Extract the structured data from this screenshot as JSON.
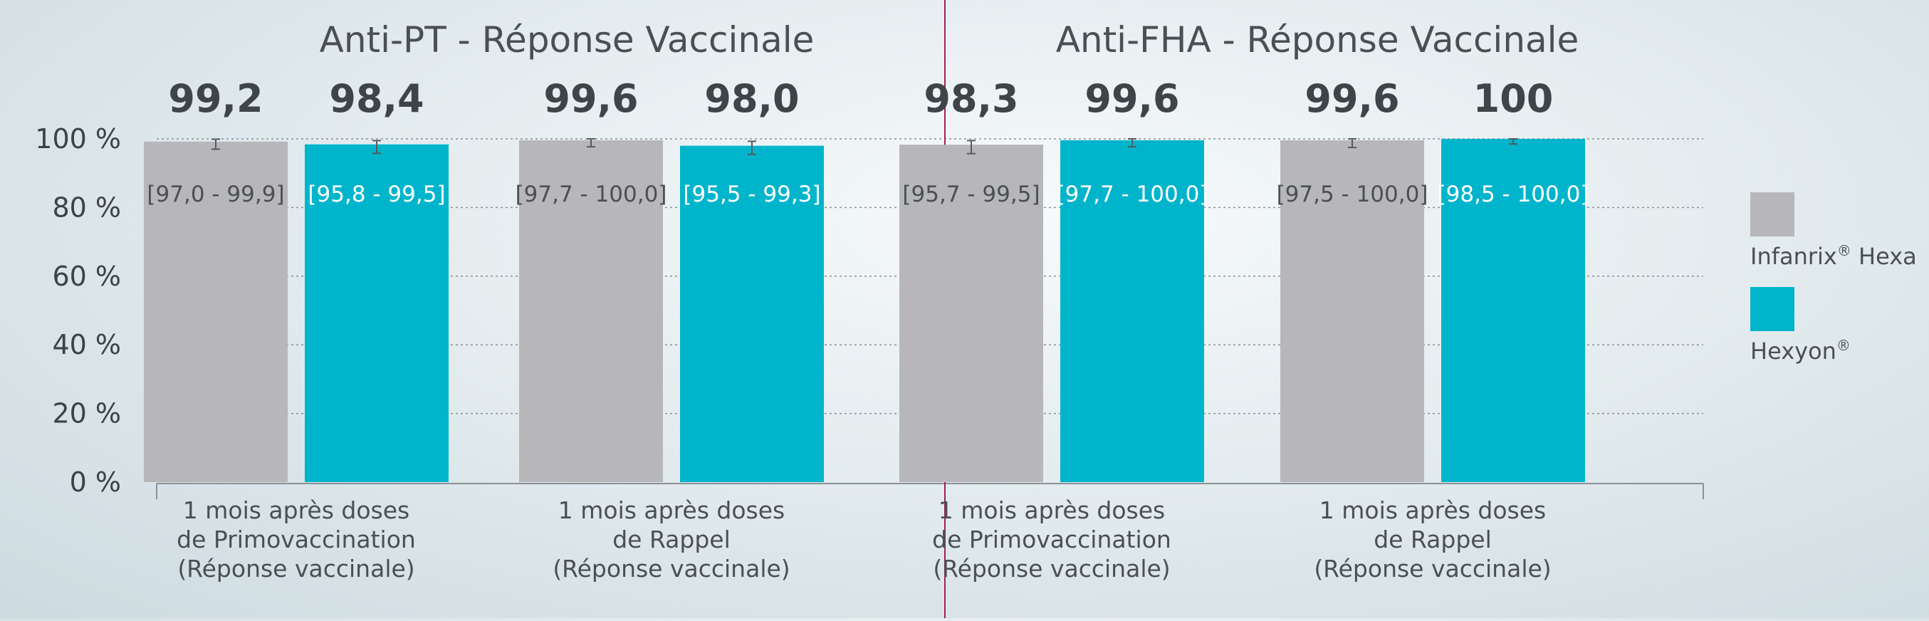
{
  "chart_data": [
    {
      "type": "bar",
      "title": "Anti-PT - Réponse Vaccinale",
      "categories": [
        [
          "1 mois après doses",
          "de Primovaccination",
          "(Réponse vaccinale)"
        ],
        [
          "1 mois après doses",
          "de Rappel",
          "(Réponse vaccinale)"
        ]
      ],
      "ylim": [
        0,
        100
      ],
      "yticks": [
        "0 %",
        "20 %",
        "40 %",
        "60 %",
        "80 %",
        "100 %"
      ],
      "series": [
        {
          "name": "Infanrix® Hexa",
          "values": [
            99.2,
            99.6
          ],
          "labels": [
            "99,2",
            "99,6"
          ],
          "ci": [
            [
              97.0,
              99.9
            ],
            [
              97.7,
              100.0
            ]
          ],
          "ci_labels": [
            "[97,0 - 99,9]",
            "[97,7 - 100,0]"
          ],
          "color": "#b7b7b9"
        },
        {
          "name": "Hexyon®",
          "values": [
            98.4,
            98.0
          ],
          "labels": [
            "98,4",
            "98,0"
          ],
          "ci": [
            [
              95.8,
              99.5
            ],
            [
              95.5,
              99.3
            ]
          ],
          "ci_labels": [
            "[95,8 - 99,5]",
            "[95,5 - 99,3]"
          ],
          "color": "#00b5cb"
        }
      ]
    },
    {
      "type": "bar",
      "title": "Anti-FHA - Réponse Vaccinale",
      "categories": [
        [
          "1 mois après doses",
          "de Primovaccination",
          "(Réponse vaccinale)"
        ],
        [
          "1 mois après doses",
          "de Rappel",
          "(Réponse vaccinale)"
        ]
      ],
      "ylim": [
        0,
        100
      ],
      "series": [
        {
          "name": "Infanrix® Hexa",
          "values": [
            98.3,
            99.6
          ],
          "labels": [
            "98,3",
            "99,6"
          ],
          "ci": [
            [
              95.7,
              99.5
            ],
            [
              97.5,
              100.0
            ]
          ],
          "ci_labels": [
            "[95,7 - 99,5]",
            "[97,5 - 100,0]"
          ],
          "color": "#b7b7b9"
        },
        {
          "name": "Hexyon®",
          "values": [
            99.6,
            100
          ],
          "labels": [
            "99,6",
            "100"
          ],
          "ci": [
            [
              97.7,
              100.0
            ],
            [
              98.5,
              100.0
            ]
          ],
          "ci_labels": [
            "[97,7 - 100,0]",
            "[98,5 - 100,0]"
          ],
          "color": "#00b5cb"
        }
      ]
    }
  ],
  "legend": {
    "position": "right",
    "items": [
      {
        "name": "Infanrix",
        "sup": "®",
        "suffix": " Hexa",
        "color": "#b7b7b9"
      },
      {
        "name": "Hexyon",
        "sup": "®",
        "suffix": "",
        "color": "#00b5cb"
      }
    ]
  },
  "colors": {
    "divider": "#a1205a",
    "grid": "#8a9196",
    "text": "#3d4246"
  }
}
